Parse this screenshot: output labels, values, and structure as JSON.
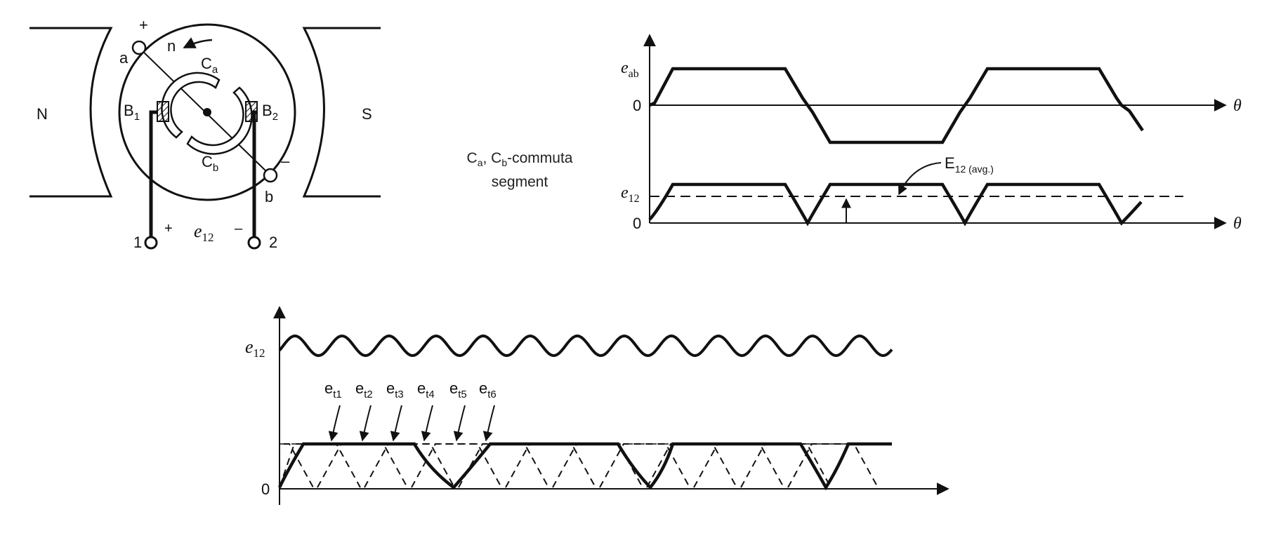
{
  "machine": {
    "pole_north": "N",
    "pole_south": "S",
    "terminal_a": "a",
    "terminal_b": "b",
    "plus_a": "+",
    "minus_b": "–",
    "rotation": "n",
    "segment_a": "C",
    "segment_a_sub": "a",
    "segment_b": "C",
    "segment_b_sub": "b",
    "brush_1": "B",
    "brush_1_sub": "1",
    "brush_2": "B",
    "brush_2_sub": "2",
    "output_terminal_1": "1",
    "output_terminal_2": "2",
    "output_plus": "+",
    "output_minus": "–",
    "output_voltage": "e",
    "output_voltage_sub": "12"
  },
  "caption": {
    "line1_a": "C",
    "line1_a_sub": "a",
    "line1_sep": ", ",
    "line1_b": "C",
    "line1_b_sub": "b",
    "line1_rest": "-commuta",
    "line2": "segment"
  },
  "graph_top": {
    "eab_label": "e",
    "eab_sub": "ab",
    "zero_1": "0",
    "theta_1": "θ",
    "e12_label": "e",
    "e12_sub": "12",
    "zero_2": "0",
    "theta_2": "θ",
    "avg_label": "E",
    "avg_sub": "12 (avg.)"
  },
  "graph_bottom": {
    "e12_label": "e",
    "e12_sub": "12",
    "zero": "0",
    "coil_labels": [
      {
        "base": "e",
        "sub": "t1"
      },
      {
        "base": "e",
        "sub": "t2"
      },
      {
        "base": "e",
        "sub": "t3"
      },
      {
        "base": "e",
        "sub": "t4"
      },
      {
        "base": "e",
        "sub": "t5"
      },
      {
        "base": "e",
        "sub": "t6"
      }
    ]
  },
  "colors": {
    "ink": "#111111",
    "background": "#ffffff"
  }
}
